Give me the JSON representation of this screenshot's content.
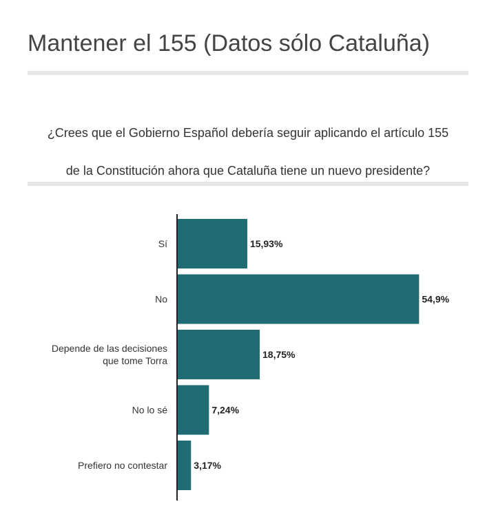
{
  "title": "Mantener el 155 (Datos sólo Cataluña)",
  "question_lines": [
    "¿Crees que el Gobierno Español debería seguir aplicando el artículo 155",
    "de la Constitución ahora que Cataluña tiene un nuevo presidente?"
  ],
  "colors": {
    "bar": "#1f6c75",
    "axis": "#222222",
    "rule": "#e6e6e6"
  },
  "chart_data": {
    "type": "bar",
    "orientation": "horizontal",
    "categories": [
      [
        "Sí"
      ],
      [
        "No"
      ],
      [
        "Depende de las decisiones",
        "que tome Torra"
      ],
      [
        "No lo sé"
      ],
      [
        "Prefiero no contestar"
      ]
    ],
    "values": [
      15.93,
      54.9,
      18.75,
      7.24,
      3.17
    ],
    "value_labels": [
      "15,93%",
      "54,9%",
      "18,75%",
      "7,24%",
      "3,17%"
    ],
    "xlim": [
      0,
      55
    ]
  }
}
